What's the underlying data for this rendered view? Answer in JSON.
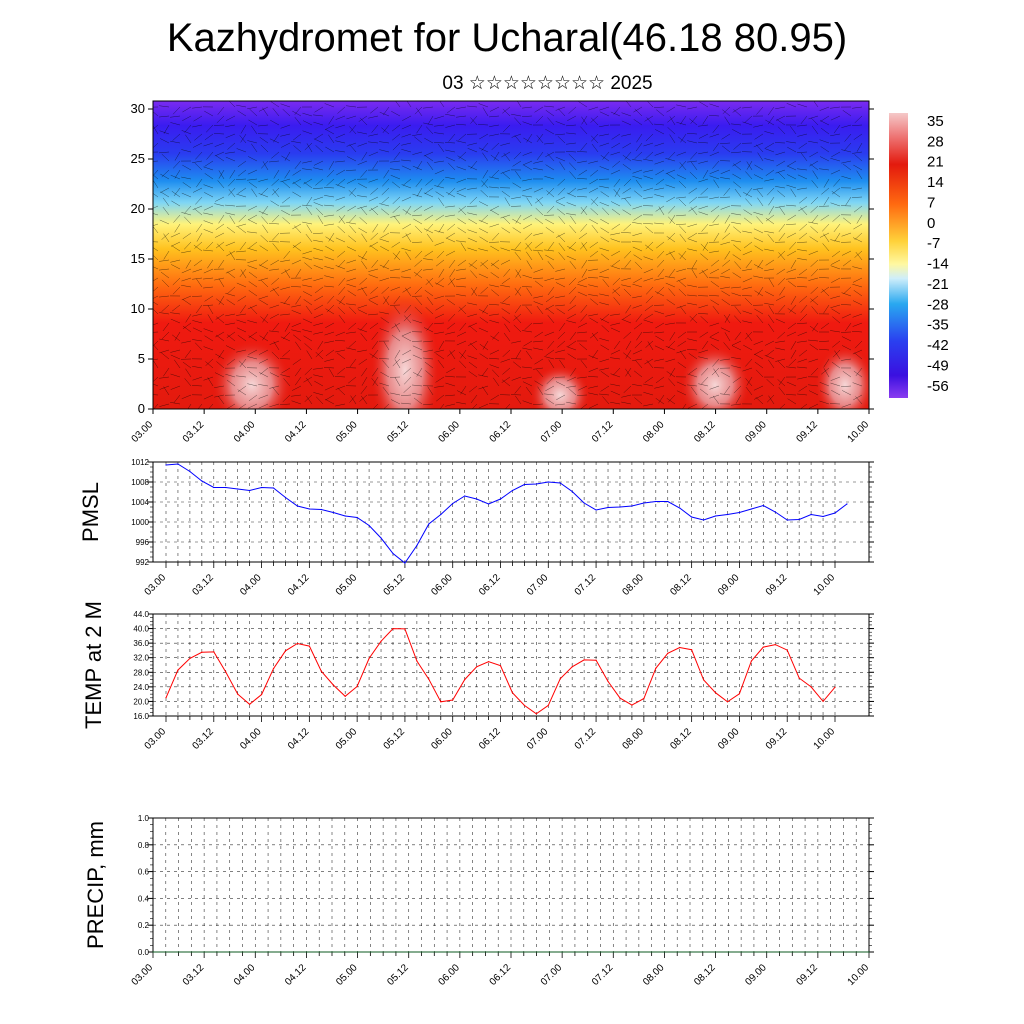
{
  "header": {
    "title": "Kazhydromet for Ucharal(46.18 80.95)",
    "subtitle": "03 ☆☆☆☆☆☆☆☆ 2025"
  },
  "colors": {
    "pmsl_line": "#0000ff",
    "temp_line": "#ff0000",
    "precip_line": "#0b5a1f",
    "grid": "#000000"
  },
  "x_ticks": [
    "03.00",
    "03.12",
    "04.00",
    "04.12",
    "05.00",
    "05.12",
    "06.00",
    "06.12",
    "07.00",
    "07.12",
    "08.00",
    "08.12",
    "09.00",
    "09.12",
    "10.00"
  ],
  "chart_data": [
    {
      "type": "heatmap",
      "title": "",
      "ylabel": "",
      "ylim": [
        0,
        30.8
      ],
      "y_ticks": [
        "0",
        "5",
        "10",
        "15",
        "20",
        "25",
        "30"
      ],
      "colorbar_ticks": [
        "35",
        "28",
        "21",
        "14",
        "7",
        "0",
        "-7",
        "-14",
        "-21",
        "-28",
        "-35",
        "-42",
        "-49",
        "-56"
      ],
      "colorbar_range": [
        -63,
        42
      ],
      "note_fields": "temperature-like colour field with wind barbs"
    },
    {
      "type": "line",
      "ylabel": "PMSL",
      "ylim": [
        992,
        1012
      ],
      "y_ticks": [
        "1012",
        "1008",
        "1004",
        "1000",
        "996",
        "992"
      ],
      "x_start": 0,
      "x_step_hours": 3,
      "series": [
        {
          "values": [
            1011.4,
            1011.6,
            1010.1,
            1008.2,
            1006.9,
            1006.9,
            1006.6,
            1006.3,
            1006.9,
            1006.8,
            1004.9,
            1003.2,
            1002.6,
            1002.5,
            1001.9,
            1001.2,
            1000.9,
            999.3,
            996.8,
            993.7,
            991.8,
            995.3,
            999.6,
            1001.5,
            1003.7,
            1005.2,
            1004.6,
            1003.6,
            1004.6,
            1006.3,
            1007.5,
            1007.6,
            1008.0,
            1007.8,
            1006.1,
            1003.8,
            1002.4,
            1002.9,
            1003.0,
            1003.2,
            1003.8,
            1004.1,
            1004.1,
            1002.8,
            1001.0,
            1000.4,
            1001.2,
            1001.5,
            1001.9,
            1002.6,
            1003.3,
            1002.0,
            1000.4,
            1000.5,
            1001.5,
            1001.1,
            1001.8,
            1003.6
          ]
        }
      ]
    },
    {
      "type": "line",
      "ylabel": "TEMP at 2 M",
      "ylim": [
        16,
        44
      ],
      "y_ticks": [
        "44.0",
        "40.0",
        "36.0",
        "32.0",
        "28.0",
        "24.0",
        "20.0",
        "16.0"
      ],
      "x_start": 0,
      "x_step_hours": 3,
      "series": [
        {
          "values": [
            21.0,
            28.6,
            31.8,
            33.5,
            33.6,
            28.1,
            22.0,
            19.2,
            21.9,
            29.0,
            33.9,
            35.9,
            35.2,
            28.3,
            24.5,
            21.4,
            24.1,
            31.8,
            36.5,
            40.0,
            39.9,
            31.1,
            26.1,
            19.9,
            20.4,
            26.0,
            29.5,
            30.9,
            29.8,
            22.4,
            18.9,
            16.6,
            18.9,
            26.2,
            29.5,
            31.4,
            31.3,
            25.5,
            20.9,
            19.0,
            20.8,
            29.1,
            33.2,
            34.8,
            34.2,
            25.9,
            22.4,
            19.9,
            22.1,
            31.1,
            34.9,
            35.6,
            34.1,
            26.4,
            24.0,
            20.0,
            23.9
          ]
        }
      ]
    },
    {
      "type": "line",
      "ylabel": "PRECIP, mm",
      "ylim": [
        0,
        1.0
      ],
      "y_ticks": [
        "1.0",
        "0.8",
        "0.6",
        "0.4",
        "0.2",
        "0.0"
      ],
      "series": [
        {
          "values": [
            0,
            0,
            0,
            0,
            0,
            0,
            0,
            0,
            0,
            0,
            0,
            0,
            0,
            0,
            0
          ]
        }
      ]
    }
  ]
}
